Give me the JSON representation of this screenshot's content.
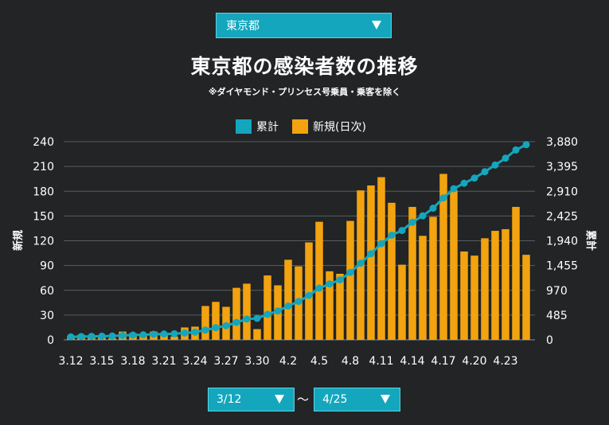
{
  "region_select": {
    "value": "東京都"
  },
  "date_range": {
    "start": "3/12",
    "separator": "～",
    "end": "4/25"
  },
  "colors": {
    "background": "#222426",
    "cumulative": "#14a6bd",
    "daily": "#f2a30f",
    "grid": "#5a5d60"
  },
  "chart_data": {
    "type": "bar",
    "title": "東京都の感染者数の推移",
    "subtitle": "※ダイヤモンド・プリンセス号乗員・乗客を除く",
    "legend": {
      "position": "top-center",
      "items": [
        "累計",
        "新規(日次)"
      ]
    },
    "x": [
      "3.12",
      "3.13",
      "3.14",
      "3.15",
      "3.16",
      "3.17",
      "3.18",
      "3.19",
      "3.20",
      "3.21",
      "3.22",
      "3.23",
      "3.24",
      "3.25",
      "3.26",
      "3.27",
      "3.28",
      "3.29",
      "3.30",
      "3.31",
      "4.1",
      "4.2",
      "4.3",
      "4.4",
      "4.5",
      "4.6",
      "4.7",
      "4.8",
      "4.9",
      "4.10",
      "4.11",
      "4.12",
      "4.13",
      "4.14",
      "4.15",
      "4.16",
      "4.17",
      "4.18",
      "4.19",
      "4.20",
      "4.21",
      "4.22",
      "4.23",
      "4.24",
      "4.25"
    ],
    "x_tick_labels": [
      "3.12",
      "3.15",
      "3.18",
      "3.21",
      "3.24",
      "3.27",
      "3.30",
      "4.2",
      "4.5",
      "4.8",
      "4.11",
      "4.14",
      "4.17",
      "4.20",
      "4.23"
    ],
    "left_axis": {
      "label": "新規",
      "min": 0,
      "max": 240,
      "ticks": [
        "0",
        "30",
        "60",
        "90",
        "120",
        "150",
        "180",
        "210",
        "240"
      ]
    },
    "right_axis": {
      "label": "累計",
      "min": 0,
      "max": 3880,
      "ticks": [
        "0",
        "485",
        "970",
        "1,455",
        "1,940",
        "2,425",
        "2,910",
        "3,395",
        "3,880"
      ]
    },
    "grid": true,
    "series": [
      {
        "name": "新規(日次)",
        "type": "bar",
        "axis": "left",
        "values": [
          5,
          6,
          4,
          4,
          2,
          10,
          8,
          6,
          10,
          6,
          4,
          15,
          16,
          41,
          46,
          40,
          63,
          68,
          13,
          78,
          66,
          97,
          89,
          118,
          143,
          83,
          80,
          144,
          181,
          187,
          197,
          166,
          91,
          161,
          126,
          149,
          201,
          181,
          107,
          102,
          123,
          132,
          134,
          161,
          103
        ]
      },
      {
        "name": "累計",
        "type": "line",
        "axis": "right",
        "values": [
          59,
          65,
          69,
          73,
          75,
          85,
          93,
          99,
          109,
          115,
          119,
          134,
          150,
          191,
          237,
          277,
          340,
          408,
          421,
          499,
          565,
          662,
          751,
          869,
          1012,
          1095,
          1175,
          1319,
          1500,
          1687,
          1884,
          2050,
          2141,
          2302,
          2428,
          2577,
          2778,
          2959,
          3066,
          3168,
          3291,
          3423,
          3557,
          3718,
          3821
        ]
      }
    ]
  }
}
